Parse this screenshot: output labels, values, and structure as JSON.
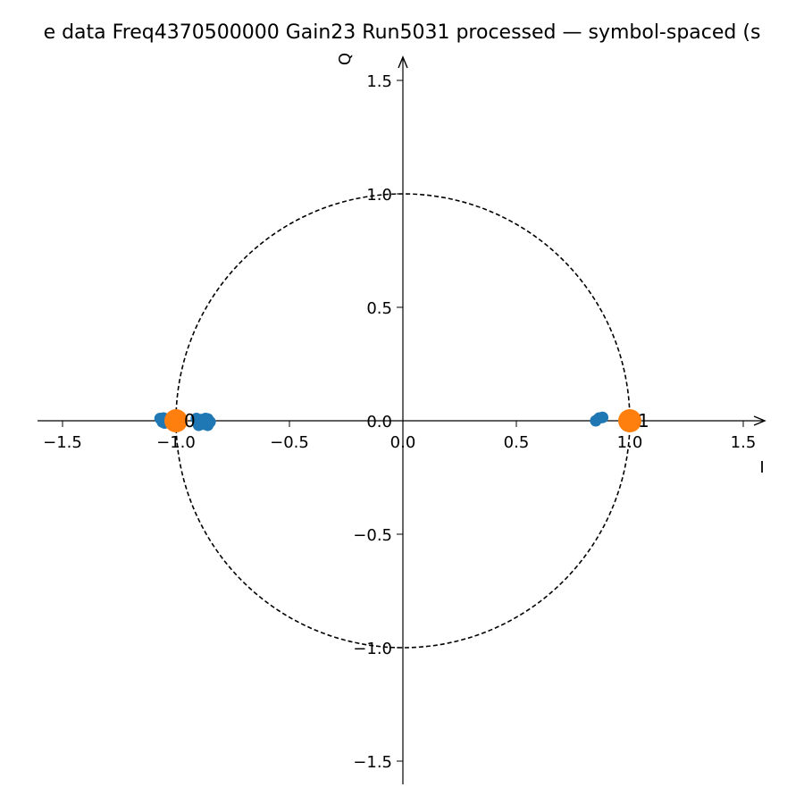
{
  "chart_data": {
    "type": "scatter",
    "title": "e data Freq4370500000 Gain23 Run5031 processed — symbol-spaced (s",
    "xlabel": "I",
    "ylabel": "Q",
    "xlim": [
      -1.6,
      1.6
    ],
    "ylim": [
      -1.6,
      1.6
    ],
    "x_ticks": [
      -1.5,
      -1.0,
      -0.5,
      0.0,
      0.5,
      1.0,
      1.5
    ],
    "y_ticks": [
      -1.5,
      -1.0,
      -0.5,
      0.0,
      0.5,
      1.0,
      1.5
    ],
    "x_tick_labels": [
      "−1.5",
      "−1.0",
      "−0.5",
      "0.0",
      "0.5",
      "1.0",
      "1.5"
    ],
    "y_tick_labels": [
      "−1.5",
      "−1.0",
      "−0.5",
      "0.0",
      "0.5",
      "1.0",
      "1.5"
    ],
    "grid": false,
    "unit_circle": {
      "radius": 1.0,
      "style": "dashed"
    },
    "series": [
      {
        "color": "#1f77b4",
        "points": [
          [
            -1.07,
            0.01
          ],
          [
            -1.06,
            -0.005
          ],
          [
            -1.055,
            0.012
          ],
          [
            -1.05,
            -0.01
          ],
          [
            -1.045,
            0.005
          ],
          [
            -0.91,
            0.01
          ],
          [
            -0.9,
            -0.02
          ],
          [
            -0.89,
            0.005
          ],
          [
            -0.88,
            -0.015
          ],
          [
            -0.87,
            0.01
          ],
          [
            -0.86,
            -0.02
          ],
          [
            -0.86,
            0.008
          ],
          [
            -0.85,
            -0.005
          ],
          [
            0.85,
            0.0
          ],
          [
            0.865,
            0.012
          ],
          [
            0.88,
            0.015
          ]
        ]
      },
      {
        "color": "#ff7f0e",
        "points": [
          [
            -1.0,
            0.0
          ],
          [
            1.0,
            0.0
          ]
        ],
        "labels": [
          "0",
          "1"
        ]
      }
    ]
  }
}
